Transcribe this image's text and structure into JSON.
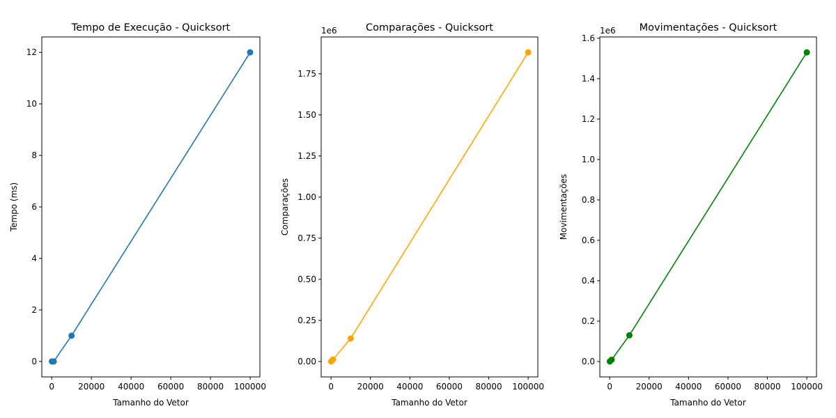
{
  "chart_data": [
    {
      "type": "line",
      "title": "Tempo de Execução - Quicksort",
      "xlabel": "Tamanho do Vetor",
      "ylabel": "Tempo (ms)",
      "color": "#1f77b4",
      "marker": "circle",
      "offset_text": "",
      "x": [
        100,
        1000,
        10000,
        100000
      ],
      "y": [
        0.0,
        0.0,
        1.0,
        12.0
      ],
      "xlim": [
        -4995,
        104895
      ],
      "ylim": [
        -0.6,
        12.6
      ],
      "xticks": [
        0,
        20000,
        40000,
        60000,
        80000,
        100000
      ],
      "xtick_labels": [
        "0",
        "20000",
        "40000",
        "60000",
        "80000",
        "100000"
      ],
      "yticks": [
        0,
        2,
        4,
        6,
        8,
        10,
        12
      ],
      "ytick_labels": [
        "0",
        "2",
        "4",
        "6",
        "8",
        "10",
        "12"
      ],
      "grid": false
    },
    {
      "type": "line",
      "title": "Comparações - Quicksort",
      "xlabel": "Tamanho do Vetor",
      "ylabel": "Comparações",
      "color": "#ffa500",
      "marker": "circle",
      "offset_text": "1e6",
      "x": [
        100,
        1000,
        10000,
        100000
      ],
      "y": [
        800,
        12000,
        140000,
        1880000
      ],
      "xlim": [
        -4995,
        104895
      ],
      "ylim": [
        -93660,
        1973860
      ],
      "xticks": [
        0,
        20000,
        40000,
        60000,
        80000,
        100000
      ],
      "xtick_labels": [
        "0",
        "20000",
        "40000",
        "60000",
        "80000",
        "100000"
      ],
      "yticks": [
        0,
        250000,
        500000,
        750000,
        1000000,
        1250000,
        1500000,
        1750000
      ],
      "ytick_labels": [
        "0.00",
        "0.25",
        "0.50",
        "0.75",
        "1.00",
        "1.25",
        "1.50",
        "1.75"
      ],
      "grid": false
    },
    {
      "type": "line",
      "title": "Movimentações - Quicksort",
      "xlabel": "Tamanho do Vetor",
      "ylabel": "Movimentações",
      "color": "#008000",
      "marker": "circle",
      "offset_text": "1e6",
      "x": [
        100,
        1000,
        10000,
        100000
      ],
      "y": [
        500,
        9000,
        130000,
        1530000
      ],
      "xlim": [
        -4995,
        104895
      ],
      "ylim": [
        -75975,
        1606475
      ],
      "xticks": [
        0,
        20000,
        40000,
        60000,
        80000,
        100000
      ],
      "xtick_labels": [
        "0",
        "20000",
        "40000",
        "60000",
        "80000",
        "100000"
      ],
      "yticks": [
        0,
        200000,
        400000,
        600000,
        800000,
        1000000,
        1200000,
        1400000,
        1600000
      ],
      "ytick_labels": [
        "0.0",
        "0.2",
        "0.4",
        "0.6",
        "0.8",
        "1.0",
        "1.2",
        "1.4",
        "1.6"
      ],
      "grid": false
    }
  ]
}
